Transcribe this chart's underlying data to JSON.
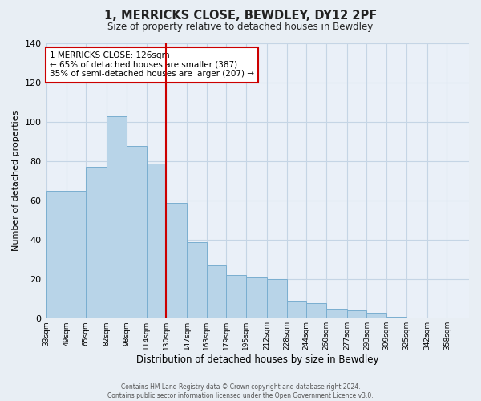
{
  "title": "1, MERRICKS CLOSE, BEWDLEY, DY12 2PF",
  "subtitle": "Size of property relative to detached houses in Bewdley",
  "xlabel": "Distribution of detached houses by size in Bewdley",
  "ylabel": "Number of detached properties",
  "footer_line1": "Contains HM Land Registry data © Crown copyright and database right 2024.",
  "footer_line2": "Contains public sector information licensed under the Open Government Licence v3.0.",
  "bin_labels": [
    "33sqm",
    "49sqm",
    "65sqm",
    "82sqm",
    "98sqm",
    "114sqm",
    "130sqm",
    "147sqm",
    "163sqm",
    "179sqm",
    "195sqm",
    "212sqm",
    "228sqm",
    "244sqm",
    "260sqm",
    "277sqm",
    "293sqm",
    "309sqm",
    "325sqm",
    "342sqm",
    "358sqm"
  ],
  "bar_values": [
    65,
    65,
    77,
    103,
    88,
    79,
    59,
    39,
    27,
    22,
    21,
    20,
    9,
    8,
    5,
    4,
    3,
    1,
    0,
    0,
    0
  ],
  "bar_left_edges": [
    33,
    49,
    65,
    82,
    98,
    114,
    130,
    147,
    163,
    179,
    195,
    212,
    228,
    244,
    260,
    277,
    293,
    309,
    325,
    342,
    358
  ],
  "bin_width": 16,
  "bar_color": "#b8d4e8",
  "bar_edge_color": "#7aaed0",
  "vline_x": 130,
  "vline_color": "#cc0000",
  "ylim": [
    0,
    140
  ],
  "yticks": [
    0,
    20,
    40,
    60,
    80,
    100,
    120,
    140
  ],
  "annotation_text": "1 MERRICKS CLOSE: 126sqm\n← 65% of detached houses are smaller (387)\n35% of semi-detached houses are larger (207) →",
  "annotation_box_color": "#ffffff",
  "annotation_box_edge_color": "#cc0000",
  "bg_color": "#e8eef4",
  "plot_bg_color": "#eaf0f8",
  "grid_color": "#c5d5e5"
}
